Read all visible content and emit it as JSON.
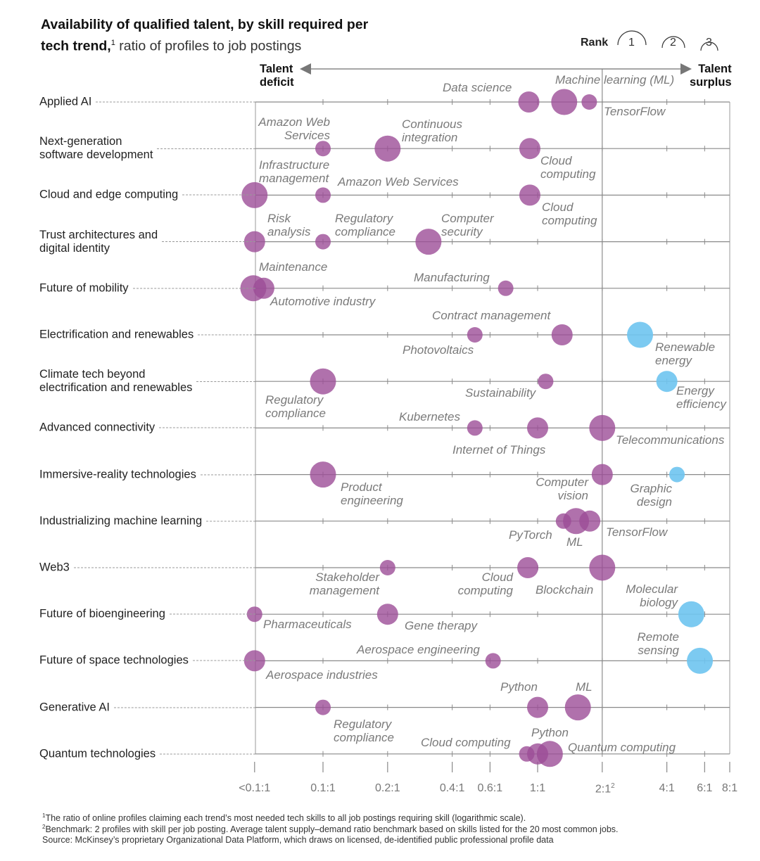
{
  "title": {
    "bold_line1": "Availability of qualified talent, by skill required per",
    "bold_line2": "tech trend,",
    "footnote_marker": "1",
    "regular": "ratio of profiles to job postings"
  },
  "rank_legend": {
    "label": "Rank",
    "ranks": [
      "1",
      "2",
      "3"
    ]
  },
  "axis_direction": {
    "left": "Talent\ndeficit",
    "right": "Talent\nsurplus"
  },
  "colors": {
    "deficit": "#9c4d97",
    "surplus": "#6ec4f0",
    "grid": "#8a8a8a"
  },
  "chart_data": {
    "type": "scatter",
    "subtype": "bubble",
    "title": "Availability of qualified talent, by skill required per tech trend",
    "xlabel": "ratio of profiles to job postings (logarithmic scale)",
    "x_scale": "log",
    "xlim": [
      0.048,
      8
    ],
    "benchmark_ratio": 2,
    "size_encodes": "rank (1 largest, 3 smallest)",
    "color_encodes": "purple = talent deficit, blue = talent surplus",
    "ticks": [
      {
        "value": 0.048,
        "label": "<0.1:1",
        "marker": ""
      },
      {
        "value": 0.1,
        "label": "0.1:1",
        "marker": ""
      },
      {
        "value": 0.2,
        "label": "0.2:1",
        "marker": ""
      },
      {
        "value": 0.4,
        "label": "0.4:1",
        "marker": ""
      },
      {
        "value": 0.6,
        "label": "0.6:1",
        "marker": ""
      },
      {
        "value": 1,
        "label": "1:1",
        "marker": ""
      },
      {
        "value": 2,
        "label": "2:1",
        "marker": "2"
      },
      {
        "value": 4,
        "label": "4:1",
        "marker": ""
      },
      {
        "value": 6,
        "label": "6:1",
        "marker": ""
      },
      {
        "value": 8,
        "label": "8:1",
        "marker": ""
      }
    ],
    "rows": [
      {
        "trend": "Applied AI",
        "skills": [
          {
            "skill": "Data science",
            "ratio": 0.91,
            "rank": 2,
            "surplus": false
          },
          {
            "skill": "Machine learning (ML)",
            "ratio": 1.33,
            "rank": 1,
            "surplus": false
          },
          {
            "skill": "TensorFlow",
            "ratio": 1.74,
            "rank": 3,
            "surplus": false
          }
        ]
      },
      {
        "trend": "Next-generation\nsoftware development",
        "skills": [
          {
            "skill": "Amazon Web\nServices",
            "ratio": 0.1,
            "rank": 3,
            "surplus": false
          },
          {
            "skill": "Continuous\nintegration",
            "ratio": 0.2,
            "rank": 1,
            "surplus": false
          },
          {
            "skill": "Cloud\ncomputing",
            "ratio": 0.92,
            "rank": 2,
            "surplus": false
          }
        ]
      },
      {
        "trend": "Cloud and edge computing",
        "skills": [
          {
            "skill": "Infrastructure\nmanagement",
            "ratio": 0.048,
            "rank": 1,
            "surplus": false
          },
          {
            "skill": "Amazon Web Services",
            "ratio": 0.1,
            "rank": 3,
            "surplus": false
          },
          {
            "skill": "Cloud\ncomputing",
            "ratio": 0.92,
            "rank": 2,
            "surplus": false
          }
        ]
      },
      {
        "trend": "Trust architectures and\ndigital identity",
        "skills": [
          {
            "skill": "Risk\nanalysis",
            "ratio": 0.048,
            "rank": 2,
            "surplus": false
          },
          {
            "skill": "Regulatory\ncompliance",
            "ratio": 0.1,
            "rank": 3,
            "surplus": false
          },
          {
            "skill": "Computer\nsecurity",
            "ratio": 0.31,
            "rank": 1,
            "surplus": false
          }
        ]
      },
      {
        "trend": "Future of mobility",
        "skills": [
          {
            "skill": "Maintenance",
            "ratio": 0.047,
            "rank": 1,
            "surplus": false
          },
          {
            "skill": "Automotive industry",
            "ratio": 0.053,
            "rank": 2,
            "surplus": false
          },
          {
            "skill": "Manufacturing",
            "ratio": 0.71,
            "rank": 3,
            "surplus": false
          }
        ]
      },
      {
        "trend": "Electrification and renewables",
        "skills": [
          {
            "skill": "Photovoltaics",
            "ratio": 0.51,
            "rank": 3,
            "surplus": false
          },
          {
            "skill": "Contract management",
            "ratio": 1.3,
            "rank": 2,
            "surplus": false
          },
          {
            "skill": "Renewable\nenergy",
            "ratio": 3.0,
            "rank": 1,
            "surplus": true
          }
        ]
      },
      {
        "trend": "Climate tech beyond\nelectrification and renewables",
        "skills": [
          {
            "skill": "Regulatory\ncompliance",
            "ratio": 0.1,
            "rank": 1,
            "surplus": false
          },
          {
            "skill": "Sustainability",
            "ratio": 1.09,
            "rank": 3,
            "surplus": false
          },
          {
            "skill": "Energy\nefficiency",
            "ratio": 4.0,
            "rank": 2,
            "surplus": true
          }
        ]
      },
      {
        "trend": "Advanced connectivity",
        "skills": [
          {
            "skill": "Kubernetes",
            "ratio": 0.51,
            "rank": 3,
            "surplus": false
          },
          {
            "skill": "Internet of Things",
            "ratio": 1.0,
            "rank": 2,
            "surplus": false
          },
          {
            "skill": "Telecommunications",
            "ratio": 2.0,
            "rank": 1,
            "surplus": false
          }
        ]
      },
      {
        "trend": "Immersive-reality technologies",
        "skills": [
          {
            "skill": "Product\nengineering",
            "ratio": 0.1,
            "rank": 1,
            "surplus": false
          },
          {
            "skill": "Computer\nvision",
            "ratio": 2.0,
            "rank": 2,
            "surplus": false
          },
          {
            "skill": "Graphic\ndesign",
            "ratio": 4.46,
            "rank": 3,
            "surplus": true
          }
        ]
      },
      {
        "trend": "Industrializing machine learning",
        "skills": [
          {
            "skill": "PyTorch",
            "ratio": 1.32,
            "rank": 3,
            "surplus": false
          },
          {
            "skill": "ML",
            "ratio": 1.51,
            "rank": 1,
            "surplus": false
          },
          {
            "skill": "TensorFlow",
            "ratio": 1.75,
            "rank": 2,
            "surplus": false
          }
        ]
      },
      {
        "trend": "Web3",
        "skills": [
          {
            "skill": "Stakeholder\nmanagement",
            "ratio": 0.2,
            "rank": 3,
            "surplus": false
          },
          {
            "skill": "Cloud\ncomputing",
            "ratio": 0.9,
            "rank": 2,
            "surplus": false
          },
          {
            "skill": "Blockchain",
            "ratio": 2.0,
            "rank": 1,
            "surplus": false
          }
        ]
      },
      {
        "trend": "Future of bioengineering",
        "skills": [
          {
            "skill": "Pharmaceuticals",
            "ratio": 0.048,
            "rank": 3,
            "surplus": false
          },
          {
            "skill": "Gene therapy",
            "ratio": 0.2,
            "rank": 2,
            "surplus": false
          },
          {
            "skill": "Molecular\nbiology",
            "ratio": 5.2,
            "rank": 1,
            "surplus": true
          }
        ]
      },
      {
        "trend": "Future of space technologies",
        "skills": [
          {
            "skill": "Aerospace industries",
            "ratio": 0.048,
            "rank": 2,
            "surplus": false
          },
          {
            "skill": "Aerospace engineering",
            "ratio": 0.62,
            "rank": 3,
            "surplus": false
          },
          {
            "skill": "Remote\nsensing",
            "ratio": 5.7,
            "rank": 1,
            "surplus": true
          }
        ]
      },
      {
        "trend": "Generative AI",
        "skills": [
          {
            "skill": "Regulatory\ncompliance",
            "ratio": 0.1,
            "rank": 3,
            "surplus": false
          },
          {
            "skill": "Python",
            "ratio": 1.0,
            "rank": 2,
            "surplus": false
          },
          {
            "skill": "ML",
            "ratio": 1.54,
            "rank": 1,
            "surplus": false
          }
        ]
      },
      {
        "trend": "Quantum technologies",
        "skills": [
          {
            "skill": "Cloud computing",
            "ratio": 0.89,
            "rank": 3,
            "surplus": false
          },
          {
            "skill": "Python",
            "ratio": 1.0,
            "rank": 2,
            "surplus": false
          },
          {
            "skill": "Quantum computing",
            "ratio": 1.14,
            "rank": 1,
            "surplus": false
          }
        ]
      }
    ]
  },
  "footnotes": [
    {
      "marker": "1",
      "text": "The ratio of online profiles claiming each trend’s most needed tech skills to all job postings requiring skill (logarithmic scale)."
    },
    {
      "marker": "2",
      "text": "Benchmark: 2 profiles with skill per job posting. Average talent supply–demand ratio benchmark based on skills listed for the 20 most common jobs."
    },
    {
      "marker": "",
      "text": "Source: McKinsey’s proprietary Organizational Data Platform, which draws on licensed, de-identified public professional profile data"
    }
  ]
}
